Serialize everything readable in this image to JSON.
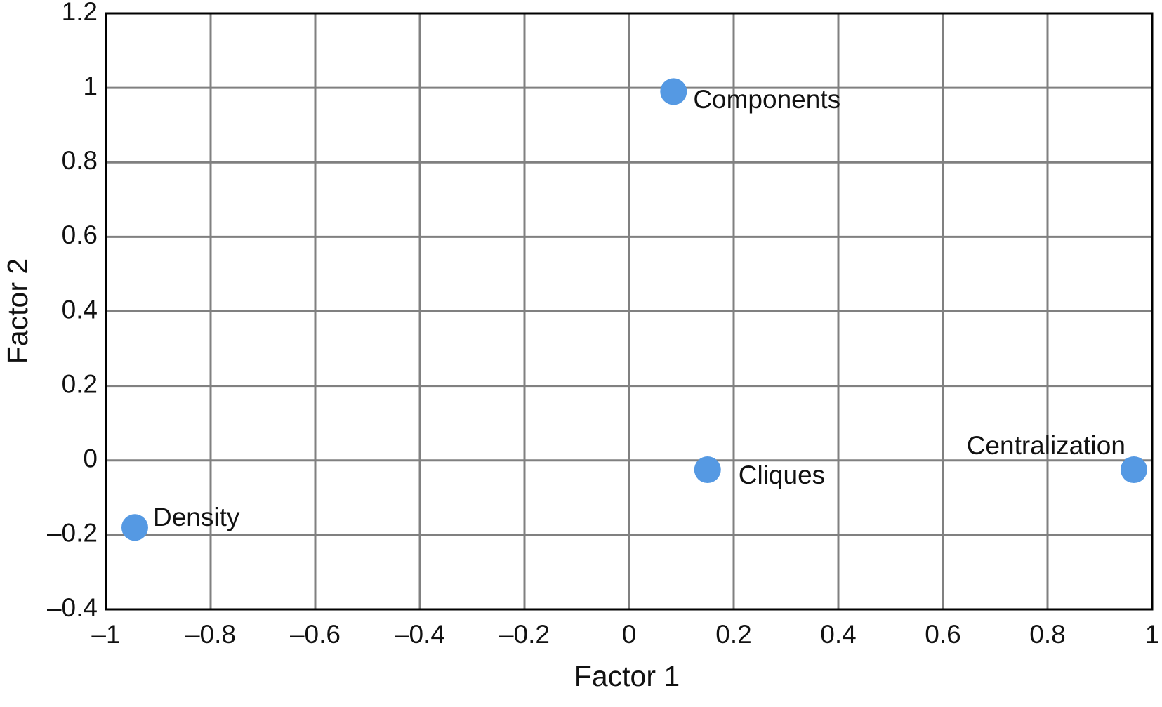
{
  "chart_data": {
    "type": "scatter",
    "x_label": "Factor 1",
    "y_label": "Factor 2",
    "labels": [
      "Components",
      "Cliques",
      "Centralization",
      "Density"
    ],
    "x": [
      0.085,
      0.15,
      0.965,
      -0.945
    ],
    "values": [
      0.99,
      -0.025,
      -0.025,
      -0.18
    ],
    "color": "#5599e3",
    "xlim": [
      -1,
      1
    ],
    "xticks": [
      {
        "value": -1,
        "label": "–1"
      },
      {
        "value": -0.8,
        "label": "–0.8"
      },
      {
        "value": -0.6,
        "label": "–0.6"
      },
      {
        "value": -0.4,
        "label": "–0.4"
      },
      {
        "value": -0.2,
        "label": "–0.2"
      },
      0,
      0.2,
      0.4,
      0.6,
      0.8,
      1
    ],
    "ylim": [
      -0.4,
      1.2
    ],
    "yticks": [
      {
        "value": -0.4,
        "label": "–0.4"
      },
      {
        "value": -0.2,
        "label": "–0.2"
      },
      0,
      0.2,
      0.4,
      0.6,
      0.8,
      1,
      1.2
    ],
    "grid": true
  }
}
